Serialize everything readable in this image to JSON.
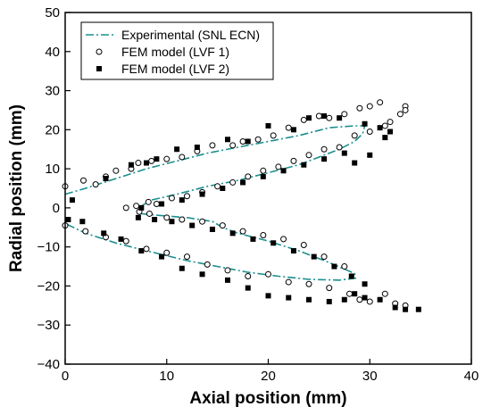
{
  "chart_data": {
    "type": "scatter",
    "xlabel": "Axial position (mm)",
    "ylabel": "Radial position (mm)",
    "xlim": [
      0,
      40
    ],
    "ylim": [
      -40,
      50
    ],
    "xticks": [
      0,
      10,
      20,
      30,
      40
    ],
    "yticks": [
      -40,
      -30,
      -20,
      -10,
      0,
      10,
      20,
      30,
      40,
      50
    ],
    "legend_position": "top-left",
    "series": [
      {
        "name": "Experimental (SNL ECN)",
        "style": "dash-dot-line",
        "color": "#1a8f8f",
        "x": [
          0,
          2,
          5,
          8,
          11,
          14,
          17,
          20,
          23,
          26,
          28.5,
          29.5,
          29.3,
          28.5,
          27,
          25,
          23,
          20,
          17,
          14,
          11,
          8.5,
          7.2,
          7.5,
          9.5,
          12,
          14.5,
          15.5,
          17,
          20,
          23,
          26,
          28.5,
          28.6,
          27,
          24,
          21,
          18,
          15,
          12,
          8,
          5,
          2,
          0
        ],
        "y": [
          3.5,
          5,
          7.5,
          10,
          12,
          14,
          15.5,
          17,
          18.5,
          20.5,
          21,
          21,
          19,
          17,
          15,
          13,
          11,
          9,
          7,
          5.5,
          3.5,
          2,
          0,
          -1.5,
          -2,
          -2.5,
          -3.5,
          -5,
          -6.5,
          -8.5,
          -11,
          -14,
          -16.8,
          -18,
          -18.5,
          -18.3,
          -17.5,
          -16.5,
          -15,
          -13.5,
          -11,
          -9,
          -6.5,
          -4
        ]
      },
      {
        "name": "FEM model (LVF 1)",
        "style": "open-circle",
        "color": "#000000",
        "x": [
          0,
          1.8,
          3,
          4,
          5,
          6.5,
          7.2,
          8.5,
          10,
          11.5,
          13,
          14.5,
          16.5,
          17.5,
          19,
          20.5,
          22,
          23.5,
          25,
          26,
          27.5,
          29,
          30,
          31,
          32,
          33,
          33.5,
          6,
          7,
          8.2,
          9,
          10.5,
          12,
          13.5,
          15,
          16.5,
          18,
          19.5,
          21,
          22.5,
          24,
          25.5,
          27,
          28.5,
          30,
          31.5,
          33.5,
          0,
          2,
          4,
          6,
          8,
          10,
          12,
          14,
          16,
          18,
          20,
          22,
          24,
          26,
          28,
          29,
          30,
          31.5,
          32.5,
          33.5,
          7.3,
          8.3,
          10,
          11.5,
          13.5,
          15.5,
          17.5,
          19.5,
          21.5,
          23.5,
          25.5,
          27.5
        ],
        "y": [
          5.5,
          7,
          6,
          8,
          9.5,
          10,
          11.5,
          12,
          12.5,
          13,
          14.5,
          16,
          16,
          17,
          17.5,
          18.5,
          20.5,
          22.5,
          23.5,
          23,
          24,
          25.5,
          26,
          27,
          22,
          24,
          26,
          0,
          0.5,
          1.5,
          1,
          2.5,
          3,
          4,
          5.5,
          6.5,
          8,
          9.5,
          10.5,
          12,
          13.5,
          15,
          15.5,
          18.5,
          19.5,
          21,
          25,
          -4.5,
          -6,
          -7.5,
          -8.5,
          -10.5,
          -11.5,
          -12.5,
          -14.5,
          -16,
          -17.5,
          -17,
          -19,
          -19.5,
          -20.5,
          -22,
          -23.5,
          -24,
          -22,
          -24.5,
          -25,
          -1,
          -1.5,
          -2.5,
          -3,
          -3.5,
          -4.5,
          -6,
          -7,
          -8,
          -9.5,
          -12.5,
          -15
        ]
      },
      {
        "name": "FEM model (LVF 2)",
        "style": "filled-square",
        "color": "#000000",
        "x": [
          0.7,
          4,
          6.5,
          8,
          9,
          11,
          13,
          16,
          18,
          20,
          22.5,
          24,
          25.5,
          27,
          29.5,
          31,
          32,
          7.5,
          9.5,
          11.5,
          13.5,
          15.5,
          17.5,
          19.5,
          21.5,
          23.5,
          25.5,
          27.5,
          28.5,
          30,
          31.5,
          0.3,
          1.7,
          3.8,
          5.5,
          7.5,
          9.5,
          11.5,
          13.5,
          16,
          18,
          20,
          22,
          24,
          26,
          27.5,
          28.5,
          29.5,
          31,
          32.5,
          33.5,
          34.8,
          7.2,
          8.8,
          10.5,
          12.5,
          14.5,
          16.5,
          18.5,
          20.5,
          22.5,
          24.5,
          26.5,
          28.2,
          29.5
        ],
        "y": [
          2,
          7.5,
          11,
          11.5,
          12.5,
          15,
          15.5,
          17.5,
          17,
          21,
          20,
          23,
          23.5,
          23,
          21.5,
          20.5,
          19.5,
          0,
          1,
          2,
          3.5,
          5,
          6.5,
          8,
          9.5,
          11,
          12.5,
          14,
          11.5,
          13.5,
          18,
          -3,
          -3.5,
          -6.5,
          -8,
          -11,
          -12.5,
          -15.5,
          -17,
          -18.5,
          -20.5,
          -22.5,
          -23,
          -23.5,
          -24,
          -23.5,
          -22,
          -23,
          -23.5,
          -25.5,
          -26,
          -26,
          -2.5,
          -3,
          -3.5,
          -4.5,
          -5.5,
          -6.5,
          -8,
          -9,
          -11,
          -12.5,
          -15,
          -17.5,
          -19.5
        ]
      }
    ]
  }
}
